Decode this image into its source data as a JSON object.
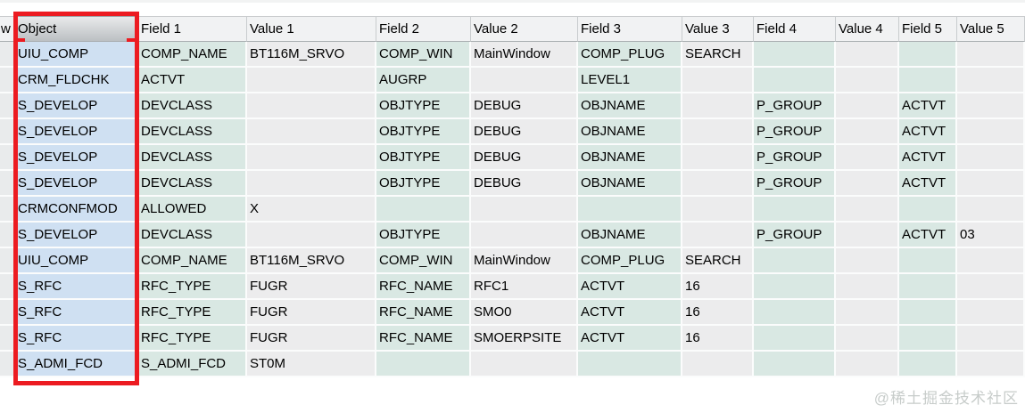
{
  "watermark": "@稀土掘金技术社区",
  "colors": {
    "annotation_red": "#ec1b21",
    "object_column_blue": "#cfe0f2",
    "field_column_teal": "#d9e8e3",
    "value_column_gray": "#ececed",
    "header_gray": "#f1f2f3",
    "selected_header_gray": "#bcc0c3"
  },
  "table": {
    "columns": [
      {
        "label": "w",
        "kind": "partial"
      },
      {
        "label": "Object",
        "kind": "object"
      },
      {
        "label": "Field 1",
        "kind": "field"
      },
      {
        "label": "Value 1",
        "kind": "value"
      },
      {
        "label": "Field 2",
        "kind": "field"
      },
      {
        "label": "Value 2",
        "kind": "value"
      },
      {
        "label": "Field 3",
        "kind": "field"
      },
      {
        "label": "Value 3",
        "kind": "value"
      },
      {
        "label": "Field 4",
        "kind": "field"
      },
      {
        "label": "Value 4",
        "kind": "value"
      },
      {
        "label": "Field 5",
        "kind": "field"
      },
      {
        "label": "Value 5",
        "kind": "value"
      }
    ],
    "rows": [
      [
        "",
        "UIU_COMP",
        "COMP_NAME",
        "BT116M_SRVO",
        "COMP_WIN",
        "MainWindow",
        "COMP_PLUG",
        "SEARCH",
        "",
        "",
        "",
        ""
      ],
      [
        "",
        "CRM_FLDCHK",
        "ACTVT",
        "",
        "AUGRP",
        "",
        "LEVEL1",
        "",
        "",
        "",
        "",
        ""
      ],
      [
        "",
        "S_DEVELOP",
        "DEVCLASS",
        "",
        "OBJTYPE",
        "DEBUG",
        "OBJNAME",
        "",
        "P_GROUP",
        "",
        "ACTVT",
        ""
      ],
      [
        "",
        "S_DEVELOP",
        "DEVCLASS",
        "",
        "OBJTYPE",
        "DEBUG",
        "OBJNAME",
        "",
        "P_GROUP",
        "",
        "ACTVT",
        ""
      ],
      [
        "",
        "S_DEVELOP",
        "DEVCLASS",
        "",
        "OBJTYPE",
        "DEBUG",
        "OBJNAME",
        "",
        "P_GROUP",
        "",
        "ACTVT",
        ""
      ],
      [
        "",
        "S_DEVELOP",
        "DEVCLASS",
        "",
        "OBJTYPE",
        "DEBUG",
        "OBJNAME",
        "",
        "P_GROUP",
        "",
        "ACTVT",
        ""
      ],
      [
        "",
        "CRMCONFMOD",
        "ALLOWED",
        "X",
        "",
        "",
        "",
        "",
        "",
        "",
        "",
        ""
      ],
      [
        "",
        "S_DEVELOP",
        "DEVCLASS",
        "",
        "OBJTYPE",
        "",
        "OBJNAME",
        "",
        "P_GROUP",
        "",
        "ACTVT",
        "03"
      ],
      [
        "",
        "UIU_COMP",
        "COMP_NAME",
        "BT116M_SRVO",
        "COMP_WIN",
        "MainWindow",
        "COMP_PLUG",
        "SEARCH",
        "",
        "",
        "",
        ""
      ],
      [
        "",
        "S_RFC",
        "RFC_TYPE",
        "FUGR",
        "RFC_NAME",
        "RFC1",
        "ACTVT",
        "16",
        "",
        "",
        "",
        ""
      ],
      [
        "",
        "S_RFC",
        "RFC_TYPE",
        "FUGR",
        "RFC_NAME",
        "SMO0",
        "ACTVT",
        "16",
        "",
        "",
        "",
        ""
      ],
      [
        "",
        "S_RFC",
        "RFC_TYPE",
        "FUGR",
        "RFC_NAME",
        "SMOERPSITE",
        "ACTVT",
        "16",
        "",
        "",
        "",
        ""
      ],
      [
        "",
        "S_ADMI_FCD",
        "S_ADMI_FCD",
        "ST0M",
        "",
        "",
        "",
        "",
        "",
        "",
        "",
        ""
      ]
    ]
  }
}
